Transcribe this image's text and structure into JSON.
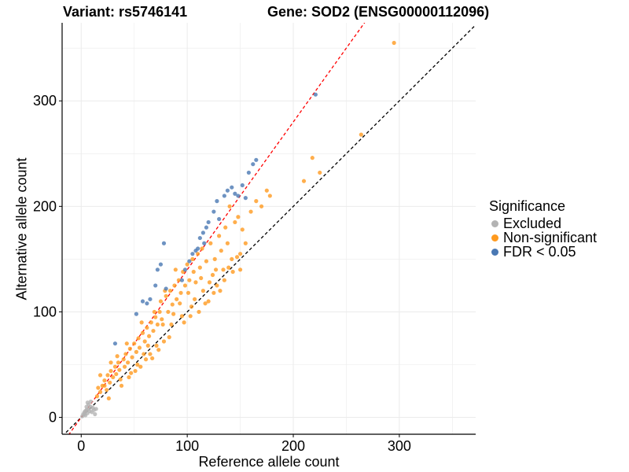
{
  "chart_data": {
    "type": "scatter",
    "title_left": "Variant: rs5746141",
    "title_right": "Gene: SOD2 (ENSG00000112096)",
    "xlabel": "Reference allele count",
    "ylabel": "Alternative allele count",
    "xlim": [
      -18,
      372
    ],
    "ylim": [
      -16,
      374
    ],
    "x_ticks": [
      0,
      100,
      200,
      300
    ],
    "y_ticks": [
      0,
      100,
      200,
      300
    ],
    "grid": true,
    "legend": {
      "title": "Significance",
      "position": "right",
      "entries": [
        {
          "label": "Excluded",
          "color": "#b3b3b3"
        },
        {
          "label": "Non-significant",
          "color": "#ff9a1f"
        },
        {
          "label": "FDR < 0.05",
          "color": "#4a78b3"
        }
      ]
    },
    "reference_lines": [
      {
        "name": "equal-ratio-line",
        "slope": 1,
        "intercept": 0,
        "color": "#000000",
        "dash": "dashed"
      },
      {
        "name": "fitted-ratio-line",
        "slope": 1.4,
        "intercept": 0,
        "color": "#ff0000",
        "dash": "dashed"
      }
    ],
    "series": [
      {
        "name": "Excluded",
        "color": "#b3b3b3",
        "points": [
          [
            1,
            1
          ],
          [
            2,
            3
          ],
          [
            3,
            5
          ],
          [
            4,
            2
          ],
          [
            5,
            7
          ],
          [
            6,
            4
          ],
          [
            7,
            8
          ],
          [
            8,
            6
          ],
          [
            9,
            10
          ],
          [
            10,
            5
          ],
          [
            5,
            10
          ],
          [
            3,
            3
          ],
          [
            7,
            12
          ],
          [
            11,
            9
          ],
          [
            12,
            7
          ],
          [
            6,
            14
          ],
          [
            9,
            15
          ],
          [
            13,
            3
          ],
          [
            14,
            8
          ],
          [
            4,
            6
          ]
        ]
      },
      {
        "name": "Non-significant",
        "color": "#ff9a1f",
        "points": [
          [
            15,
            20
          ],
          [
            16,
            28
          ],
          [
            18,
            24
          ],
          [
            20,
            30
          ],
          [
            22,
            35
          ],
          [
            24,
            26
          ],
          [
            25,
            40
          ],
          [
            27,
            33
          ],
          [
            28,
            44
          ],
          [
            30,
            38
          ],
          [
            32,
            48
          ],
          [
            33,
            41
          ],
          [
            35,
            52
          ],
          [
            36,
            45
          ],
          [
            38,
            30
          ],
          [
            40,
            55
          ],
          [
            41,
            48
          ],
          [
            42,
            60
          ],
          [
            44,
            52
          ],
          [
            45,
            38
          ],
          [
            46,
            65
          ],
          [
            48,
            57
          ],
          [
            50,
            70
          ],
          [
            51,
            44
          ],
          [
            52,
            62
          ],
          [
            54,
            75
          ],
          [
            55,
            66
          ],
          [
            56,
            48
          ],
          [
            58,
            80
          ],
          [
            60,
            72
          ],
          [
            61,
            55
          ],
          [
            62,
            85
          ],
          [
            64,
            77
          ],
          [
            65,
            60
          ],
          [
            66,
            90
          ],
          [
            68,
            82
          ],
          [
            70,
            95
          ],
          [
            71,
            68
          ],
          [
            72,
            88
          ],
          [
            74,
            100
          ],
          [
            75,
            110
          ],
          [
            76,
            93
          ],
          [
            78,
            72
          ],
          [
            80,
            115
          ],
          [
            82,
            100
          ],
          [
            84,
            120
          ],
          [
            85,
            88
          ],
          [
            86,
            107
          ],
          [
            88,
            125
          ],
          [
            90,
            112
          ],
          [
            92,
            130
          ],
          [
            94,
            118
          ],
          [
            95,
            96
          ],
          [
            96,
            138
          ],
          [
            98,
            125
          ],
          [
            100,
            145
          ],
          [
            102,
            130
          ],
          [
            104,
            105
          ],
          [
            105,
            150
          ],
          [
            106,
            138
          ],
          [
            108,
            128
          ],
          [
            110,
            155
          ],
          [
            112,
            142
          ],
          [
            114,
            160
          ],
          [
            115,
            120
          ],
          [
            118,
            148
          ],
          [
            120,
            110
          ],
          [
            122,
            165
          ],
          [
            124,
            135
          ],
          [
            126,
            150
          ],
          [
            128,
            125
          ],
          [
            130,
            172
          ],
          [
            132,
            158
          ],
          [
            134,
            140
          ],
          [
            136,
            180
          ],
          [
            138,
            165
          ],
          [
            140,
            200
          ],
          [
            142,
            150
          ],
          [
            145,
            185
          ],
          [
            148,
            190
          ],
          [
            150,
            155
          ],
          [
            152,
            178
          ],
          [
            155,
            165
          ],
          [
            160,
            195
          ],
          [
            165,
            205
          ],
          [
            170,
            200
          ],
          [
            175,
            215
          ],
          [
            178,
            210
          ],
          [
            210,
            224
          ],
          [
            218,
            246
          ],
          [
            225,
            232
          ],
          [
            264,
            268
          ],
          [
            295,
            355
          ],
          [
            18,
            40
          ],
          [
            22,
            30
          ],
          [
            26,
            18
          ],
          [
            28,
            52
          ],
          [
            34,
            58
          ],
          [
            37,
            36
          ],
          [
            43,
            70
          ],
          [
            47,
            42
          ],
          [
            53,
            50
          ],
          [
            57,
            90
          ],
          [
            59,
            60
          ],
          [
            63,
            68
          ],
          [
            67,
            56
          ],
          [
            69,
            100
          ],
          [
            73,
            64
          ],
          [
            77,
            88
          ],
          [
            79,
            120
          ],
          [
            83,
            76
          ],
          [
            87,
            98
          ],
          [
            89,
            140
          ],
          [
            93,
            108
          ],
          [
            97,
            90
          ],
          [
            101,
            118
          ],
          [
            103,
            96
          ],
          [
            107,
            112
          ],
          [
            111,
            100
          ],
          [
            113,
            132
          ],
          [
            117,
            108
          ],
          [
            121,
            128
          ],
          [
            125,
            118
          ],
          [
            127,
            140
          ],
          [
            131,
            120
          ],
          [
            135,
            130
          ],
          [
            139,
            142
          ],
          [
            143,
            138
          ],
          [
            147,
            152
          ],
          [
            150,
            140
          ]
        ]
      },
      {
        "name": "FDR < 0.05",
        "color": "#4a78b3",
        "points": [
          [
            32,
            70
          ],
          [
            52,
            98
          ],
          [
            58,
            110
          ],
          [
            62,
            108
          ],
          [
            65,
            112
          ],
          [
            70,
            125
          ],
          [
            72,
            140
          ],
          [
            75,
            145
          ],
          [
            78,
            165
          ],
          [
            80,
            122
          ],
          [
            95,
            130
          ],
          [
            98,
            140
          ],
          [
            102,
            148
          ],
          [
            105,
            155
          ],
          [
            108,
            158
          ],
          [
            110,
            160
          ],
          [
            112,
            170
          ],
          [
            115,
            175
          ],
          [
            116,
            165
          ],
          [
            118,
            180
          ],
          [
            120,
            185
          ],
          [
            125,
            195
          ],
          [
            128,
            205
          ],
          [
            130,
            188
          ],
          [
            135,
            210
          ],
          [
            138,
            215
          ],
          [
            142,
            218
          ],
          [
            145,
            212
          ],
          [
            148,
            210
          ],
          [
            152,
            220
          ],
          [
            155,
            208
          ],
          [
            158,
            232
          ],
          [
            162,
            240
          ],
          [
            165,
            244
          ],
          [
            221,
            306
          ]
        ]
      }
    ]
  }
}
